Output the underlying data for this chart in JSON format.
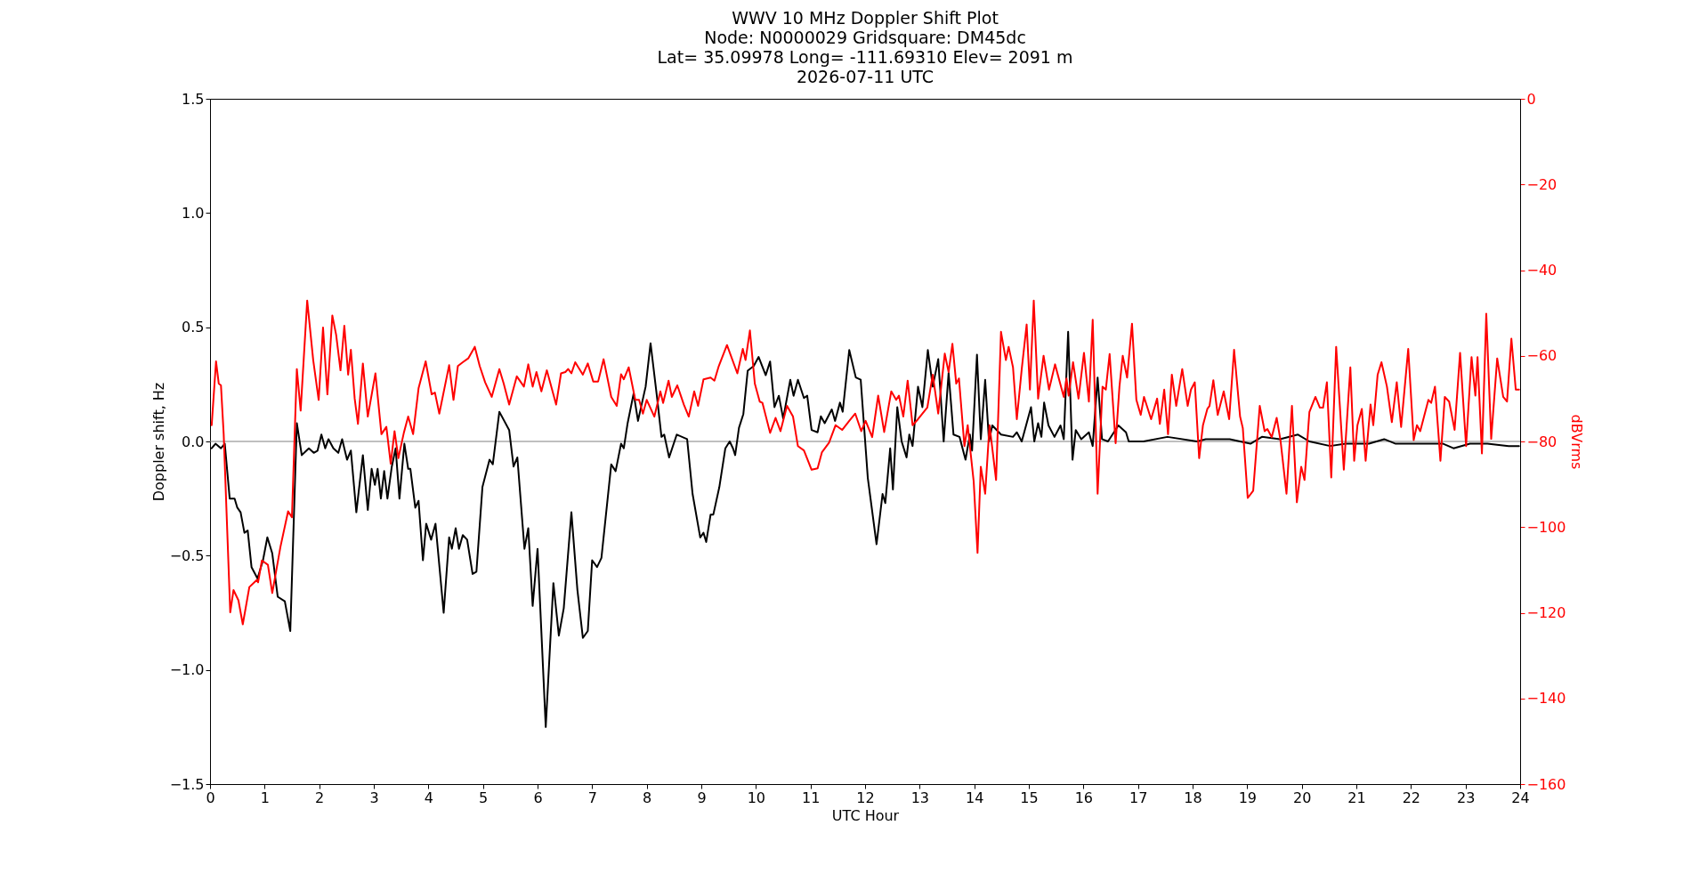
{
  "chart_data": {
    "type": "line",
    "title": "WWV 10 MHz Doppler Shift Plot\nNode:  N0000029     Gridsquare:  DM45dc\nLat= 35.09978    Long= -111.69310    Elev= 2091 m\n2026-07-11  UTC",
    "xlabel": "UTC Hour",
    "ylabel": "Doppler shift, Hz",
    "y2label": "dBVrms",
    "xlim": [
      0,
      24
    ],
    "xticks": [
      0,
      1,
      2,
      3,
      4,
      5,
      6,
      7,
      8,
      9,
      10,
      11,
      12,
      13,
      14,
      15,
      16,
      17,
      18,
      19,
      20,
      21,
      22,
      23,
      24
    ],
    "ylim": [
      -1.5,
      1.5
    ],
    "yticks": [
      {
        "value": -1.5,
        "label": "−1.5"
      },
      {
        "value": -1,
        "label": "−1.0"
      },
      {
        "value": -0.5,
        "label": "−0.5"
      },
      {
        "value": 0,
        "label": "0.0"
      },
      {
        "value": 0.5,
        "label": "0.5"
      },
      {
        "value": 1,
        "label": "1.0"
      },
      {
        "value": 1.5,
        "label": "1.5"
      }
    ],
    "y2lim": [
      -160,
      0
    ],
    "y2ticks": [
      0,
      {
        "value": -20,
        "label": "−20"
      },
      {
        "value": -40,
        "label": "−40"
      },
      {
        "value": -60,
        "label": "−60"
      },
      {
        "value": -80,
        "label": "−80"
      },
      {
        "value": -100,
        "label": "−100"
      },
      {
        "value": -120,
        "label": "−120"
      },
      {
        "value": -140,
        "label": "−140"
      },
      {
        "value": -160,
        "label": "−160"
      }
    ],
    "grid": false,
    "marker": "none",
    "line_style": "solid",
    "ref_lines": [
      {
        "axis": "y",
        "value": 0,
        "color": "#808080"
      }
    ],
    "series": [
      {
        "type": "line",
        "color": "#000000",
        "x": [
          0.03,
          0.1,
          0.2,
          0.27,
          0.36,
          0.45,
          0.5,
          0.56,
          0.63,
          0.69,
          0.76,
          0.87,
          0.97,
          1.05,
          1.14,
          1.24,
          1.37,
          1.47,
          1.59,
          1.68,
          1.81,
          1.9,
          1.97,
          2.04,
          2.11,
          2.17,
          2.26,
          2.35,
          2.42,
          2.51,
          2.58,
          2.68,
          2.8,
          2.89,
          2.96,
          3.02,
          3.07,
          3.13,
          3.19,
          3.25,
          3.33,
          3.4,
          3.47,
          3.56,
          3.63,
          3.67,
          3.76,
          3.82,
          3.9,
          3.96,
          4.05,
          4.13,
          4.28,
          4.38,
          4.43,
          4.5,
          4.56,
          4.63,
          4.71,
          4.81,
          4.88,
          4.99,
          5.12,
          5.18,
          5.3,
          5.48,
          5.56,
          5.63,
          5.76,
          5.83,
          5.91,
          6.0,
          6.15,
          6.29,
          6.39,
          6.48,
          6.62,
          6.73,
          6.83,
          6.92,
          7.0,
          7.09,
          7.17,
          7.35,
          7.43,
          7.53,
          7.58,
          7.65,
          7.76,
          7.84,
          7.98,
          8.07,
          8.19,
          8.27,
          8.32,
          8.41,
          8.55,
          8.74,
          8.84,
          8.98,
          9.04,
          9.09,
          9.17,
          9.22,
          9.33,
          9.44,
          9.52,
          9.58,
          9.62,
          9.69,
          9.77,
          9.85,
          9.96,
          10.05,
          10.18,
          10.26,
          10.34,
          10.42,
          10.5,
          10.63,
          10.69,
          10.77,
          10.88,
          10.94,
          11.02,
          11.13,
          11.19,
          11.26,
          11.39,
          11.45,
          11.54,
          11.59,
          11.71,
          11.83,
          11.92,
          12.05,
          12.21,
          12.32,
          12.37,
          12.46,
          12.51,
          12.59,
          12.67,
          12.76,
          12.81,
          12.87,
          12.97,
          13.05,
          13.15,
          13.24,
          13.34,
          13.44,
          13.53,
          13.62,
          13.73,
          13.84,
          13.92,
          13.96,
          14.05,
          14.12,
          14.2,
          14.27,
          14.33,
          14.49,
          14.71,
          14.78,
          14.87,
          15.04,
          15.1,
          15.17,
          15.23,
          15.28,
          15.36,
          15.47,
          15.58,
          15.64,
          15.72,
          15.8,
          15.86,
          15.96,
          16.1,
          16.17,
          16.26,
          16.34,
          16.45,
          16.64,
          16.78,
          16.83,
          17.1,
          17.54,
          18.08,
          18.24,
          18.68,
          19.06,
          19.27,
          19.6,
          19.93,
          20.14,
          20.52,
          20.8,
          21.23,
          21.51,
          21.72,
          22.1,
          22.59,
          22.78,
          23.08,
          23.4,
          23.79,
          23.98
        ],
        "values": [
          -0.03,
          -0.01,
          -0.03,
          -0.01,
          -0.25,
          -0.25,
          -0.29,
          -0.31,
          -0.4,
          -0.39,
          -0.55,
          -0.6,
          -0.52,
          -0.42,
          -0.49,
          -0.68,
          -0.7,
          -0.83,
          0.08,
          -0.06,
          -0.03,
          -0.05,
          -0.04,
          0.03,
          -0.03,
          0.01,
          -0.03,
          -0.05,
          0.01,
          -0.08,
          -0.04,
          -0.31,
          -0.06,
          -0.3,
          -0.12,
          -0.19,
          -0.12,
          -0.25,
          -0.13,
          -0.25,
          -0.11,
          -0.03,
          -0.25,
          -0.01,
          -0.12,
          -0.12,
          -0.29,
          -0.26,
          -0.52,
          -0.36,
          -0.43,
          -0.36,
          -0.75,
          -0.42,
          -0.47,
          -0.38,
          -0.47,
          -0.41,
          -0.43,
          -0.58,
          -0.57,
          -0.2,
          -0.08,
          -0.1,
          0.13,
          0.05,
          -0.11,
          -0.07,
          -0.47,
          -0.38,
          -0.72,
          -0.47,
          -1.25,
          -0.62,
          -0.85,
          -0.73,
          -0.31,
          -0.65,
          -0.86,
          -0.83,
          -0.52,
          -0.55,
          -0.51,
          -0.1,
          -0.13,
          -0.01,
          -0.03,
          0.08,
          0.21,
          0.09,
          0.24,
          0.43,
          0.19,
          0.02,
          0.03,
          -0.07,
          0.03,
          0.01,
          -0.23,
          -0.42,
          -0.4,
          -0.44,
          -0.32,
          -0.32,
          -0.2,
          -0.03,
          0.0,
          -0.03,
          -0.06,
          0.06,
          0.12,
          0.31,
          0.33,
          0.37,
          0.29,
          0.35,
          0.15,
          0.2,
          0.1,
          0.27,
          0.2,
          0.27,
          0.19,
          0.2,
          0.05,
          0.04,
          0.11,
          0.08,
          0.14,
          0.09,
          0.17,
          0.13,
          0.4,
          0.28,
          0.27,
          -0.16,
          -0.45,
          -0.23,
          -0.27,
          -0.03,
          -0.21,
          0.15,
          0.0,
          -0.07,
          0.03,
          -0.02,
          0.24,
          0.15,
          0.4,
          0.24,
          0.36,
          0.0,
          0.3,
          0.03,
          0.02,
          -0.08,
          0.03,
          -0.04,
          0.38,
          0.01,
          0.27,
          0.0,
          0.07,
          0.03,
          0.02,
          0.04,
          0.0,
          0.15,
          0.0,
          0.08,
          0.02,
          0.17,
          0.07,
          0.02,
          0.07,
          0.01,
          0.48,
          -0.08,
          0.05,
          0.01,
          0.04,
          -0.02,
          0.28,
          0.01,
          0.0,
          0.07,
          0.04,
          0.0,
          0.0,
          0.02,
          0.0,
          0.01,
          0.01,
          -0.01,
          0.02,
          0.01,
          0.03,
          0.0,
          -0.02,
          -0.01,
          -0.01,
          0.01,
          -0.01,
          -0.01,
          -0.01,
          -0.03,
          -0.01,
          -0.01,
          -0.02,
          -0.02
        ]
      },
      {
        "type": "line",
        "color": "#ff0000",
        "axis": "y2",
        "x": [
          0.03,
          0.11,
          0.16,
          0.2,
          0.25,
          0.37,
          0.43,
          0.52,
          0.6,
          0.72,
          0.86,
          0.88,
          0.95,
          1.06,
          1.14,
          1.29,
          1.43,
          1.5,
          1.59,
          1.66,
          1.78,
          1.89,
          1.99,
          2.07,
          2.15,
          2.24,
          2.31,
          2.39,
          2.46,
          2.53,
          2.58,
          2.65,
          2.71,
          2.8,
          2.89,
          3.03,
          3.14,
          3.23,
          3.31,
          3.38,
          3.45,
          3.55,
          3.63,
          3.72,
          3.82,
          3.95,
          4.06,
          4.12,
          4.2,
          4.38,
          4.46,
          4.54,
          4.63,
          4.73,
          4.85,
          4.94,
          5.04,
          5.16,
          5.3,
          5.38,
          5.48,
          5.62,
          5.75,
          5.83,
          5.91,
          5.98,
          6.07,
          6.17,
          6.34,
          6.43,
          6.51,
          6.56,
          6.62,
          6.69,
          6.83,
          6.92,
          7.02,
          7.11,
          7.21,
          7.35,
          7.45,
          7.53,
          7.58,
          7.67,
          7.79,
          7.86,
          7.93,
          8.0,
          8.14,
          8.25,
          8.3,
          8.4,
          8.46,
          8.56,
          8.68,
          8.77,
          8.87,
          8.94,
          9.04,
          9.17,
          9.24,
          9.32,
          9.47,
          9.66,
          9.76,
          9.81,
          9.89,
          9.98,
          10.07,
          10.12,
          10.26,
          10.36,
          10.45,
          10.57,
          10.68,
          10.77,
          10.88,
          11.02,
          11.13,
          11.21,
          11.34,
          11.46,
          11.58,
          11.71,
          11.82,
          11.93,
          12.01,
          12.13,
          12.24,
          12.35,
          12.48,
          12.57,
          12.62,
          12.7,
          12.78,
          12.87,
          12.97,
          13.14,
          13.24,
          13.34,
          13.46,
          13.53,
          13.6,
          13.67,
          13.72,
          13.82,
          13.88,
          13.92,
          13.99,
          14.06,
          14.12,
          14.2,
          14.28,
          14.4,
          14.49,
          14.58,
          14.63,
          14.71,
          14.78,
          14.87,
          14.96,
          15.02,
          15.09,
          15.17,
          15.27,
          15.37,
          15.48,
          15.64,
          15.69,
          15.73,
          15.81,
          15.91,
          16.01,
          16.1,
          16.17,
          16.26,
          16.35,
          16.41,
          16.48,
          16.59,
          16.66,
          16.72,
          16.8,
          16.89,
          16.97,
          17.05,
          17.11,
          17.24,
          17.35,
          17.4,
          17.48,
          17.55,
          17.62,
          17.7,
          17.81,
          17.91,
          17.97,
          18.04,
          18.12,
          18.19,
          18.27,
          18.31,
          18.38,
          18.46,
          18.57,
          18.67,
          18.76,
          18.87,
          18.92,
          19.01,
          19.11,
          19.23,
          19.32,
          19.37,
          19.45,
          19.54,
          19.61,
          19.72,
          19.82,
          19.91,
          19.99,
          20.05,
          20.14,
          20.25,
          20.33,
          20.39,
          20.46,
          20.54,
          20.63,
          20.77,
          20.89,
          20.96,
          21.02,
          21.1,
          21.17,
          21.26,
          21.31,
          21.39,
          21.46,
          21.56,
          21.65,
          21.74,
          21.82,
          21.95,
          22.05,
          22.11,
          22.17,
          22.24,
          22.32,
          22.37,
          22.44,
          22.54,
          22.62,
          22.7,
          22.8,
          22.9,
          23.01,
          23.11,
          23.18,
          23.22,
          23.3,
          23.38,
          23.47,
          23.58,
          23.69,
          23.76,
          23.84,
          23.92,
          23.98
        ],
        "values": [
          -76.2,
          -61.3,
          -66.5,
          -66.9,
          -78.3,
          -119.9,
          -114.7,
          -117.1,
          -122.7,
          -114.0,
          -112.3,
          -112.9,
          -107.8,
          -108.8,
          -115.4,
          -104.6,
          -96.3,
          -97.7,
          -63.1,
          -72.8,
          -47.1,
          -61.0,
          -70.3,
          -53.4,
          -69.0,
          -50.6,
          -55.1,
          -63.4,
          -53.0,
          -64.4,
          -58.6,
          -70.0,
          -75.9,
          -61.8,
          -74.2,
          -64.1,
          -78.3,
          -76.6,
          -85.2,
          -77.6,
          -83.9,
          -78.0,
          -74.2,
          -78.3,
          -67.6,
          -61.3,
          -69.0,
          -68.6,
          -73.5,
          -62.2,
          -70.3,
          -62.4,
          -61.5,
          -60.6,
          -57.9,
          -62.4,
          -66.2,
          -69.6,
          -63.1,
          -66.5,
          -71.4,
          -64.8,
          -67.2,
          -62.0,
          -67.2,
          -63.8,
          -68.3,
          -63.4,
          -71.4,
          -64.1,
          -63.8,
          -63.1,
          -64.1,
          -61.5,
          -64.4,
          -61.8,
          -66.0,
          -66.0,
          -60.8,
          -69.6,
          -71.7,
          -64.3,
          -65.5,
          -62.7,
          -70.3,
          -70.3,
          -73.5,
          -70.3,
          -74.2,
          -68.3,
          -71.0,
          -65.8,
          -69.6,
          -66.9,
          -71.4,
          -74.2,
          -68.3,
          -71.7,
          -65.5,
          -65.1,
          -65.8,
          -62.4,
          -57.5,
          -64.1,
          -58.4,
          -61.0,
          -54.1,
          -66.5,
          -70.7,
          -71.0,
          -78.0,
          -74.5,
          -77.6,
          -71.7,
          -74.2,
          -81.1,
          -82.1,
          -86.6,
          -86.3,
          -82.5,
          -80.3,
          -76.2,
          -77.3,
          -75.2,
          -73.5,
          -77.6,
          -75.2,
          -79.0,
          -69.3,
          -77.8,
          -68.3,
          -70.3,
          -69.3,
          -74.2,
          -65.8,
          -76.2,
          -74.8,
          -72.1,
          -64.4,
          -73.5,
          -59.5,
          -63.8,
          -57.2,
          -66.5,
          -65.3,
          -81.1,
          -76.2,
          -81.1,
          -89.4,
          -106.0,
          -85.9,
          -92.2,
          -76.2,
          -89.0,
          -54.4,
          -61.0,
          -57.9,
          -62.7,
          -74.8,
          -63.1,
          -52.7,
          -67.9,
          -47.1,
          -70.0,
          -60.0,
          -67.9,
          -62.0,
          -69.6,
          -65.3,
          -69.3,
          -61.5,
          -70.0,
          -59.3,
          -70.7,
          -51.6,
          -92.2,
          -67.2,
          -67.9,
          -59.6,
          -80.4,
          -67.2,
          -60.0,
          -65.1,
          -52.5,
          -70.3,
          -73.8,
          -69.6,
          -74.8,
          -70.0,
          -75.9,
          -67.9,
          -78.3,
          -64.4,
          -71.7,
          -63.1,
          -71.7,
          -67.9,
          -66.2,
          -83.9,
          -76.2,
          -72.4,
          -71.7,
          -65.7,
          -73.8,
          -68.3,
          -74.8,
          -58.6,
          -74.2,
          -76.9,
          -93.2,
          -91.5,
          -71.7,
          -77.6,
          -77.1,
          -79.0,
          -74.5,
          -79.7,
          -92.2,
          -71.7,
          -94.2,
          -85.9,
          -89.0,
          -73.1,
          -69.6,
          -72.1,
          -72.1,
          -66.2,
          -88.4,
          -57.9,
          -86.6,
          -62.7,
          -84.5,
          -76.2,
          -72.4,
          -84.5,
          -71.4,
          -76.2,
          -64.4,
          -61.5,
          -67.2,
          -75.5,
          -66.2,
          -76.6,
          -58.4,
          -79.7,
          -76.2,
          -77.6,
          -74.2,
          -70.3,
          -71.0,
          -67.2,
          -84.5,
          -69.6,
          -70.7,
          -77.3,
          -59.3,
          -81.1,
          -60.3,
          -69.3,
          -60.3,
          -82.8,
          -50.2,
          -79.4,
          -60.6,
          -69.6,
          -70.7,
          -56.0,
          -67.9,
          -67.9
        ]
      }
    ]
  }
}
